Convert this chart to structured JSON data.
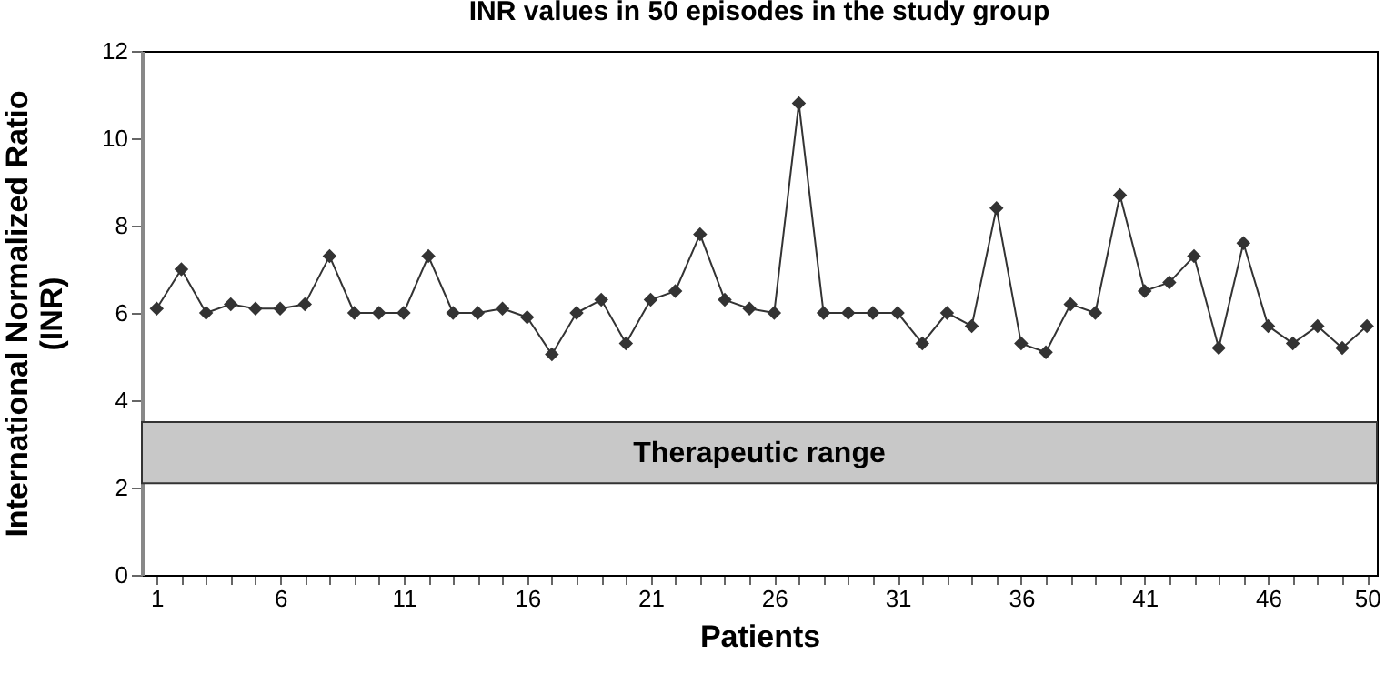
{
  "chart_data": {
    "type": "line",
    "title": "INR values in 50 episodes in the study group",
    "xlabel": "Patients",
    "ylabel": "International Normalized Ratio (INR)",
    "x": [
      1,
      2,
      3,
      4,
      5,
      6,
      7,
      8,
      9,
      10,
      11,
      12,
      13,
      14,
      15,
      16,
      17,
      18,
      19,
      20,
      21,
      22,
      23,
      24,
      25,
      26,
      27,
      28,
      29,
      30,
      31,
      32,
      33,
      34,
      35,
      36,
      37,
      38,
      39,
      40,
      41,
      42,
      43,
      44,
      45,
      46,
      47,
      48,
      49,
      50
    ],
    "series": [
      {
        "color": "#333333",
        "values": [
          6.1,
          7.0,
          6.0,
          6.2,
          6.1,
          6.1,
          6.2,
          7.3,
          6.0,
          6.0,
          6.0,
          7.3,
          6.0,
          6.0,
          6.1,
          5.9,
          5.05,
          6.0,
          6.3,
          5.3,
          6.3,
          6.5,
          7.8,
          6.3,
          6.1,
          6.0,
          10.8,
          6.0,
          6.0,
          6.0,
          6.0,
          5.3,
          6.0,
          5.7,
          8.4,
          5.3,
          5.1,
          6.2,
          6.0,
          8.7,
          6.5,
          6.7,
          7.3,
          5.2,
          7.6,
          5.7,
          5.3,
          5.7,
          5.2,
          5.7
        ]
      }
    ],
    "xlim": [
      0.4,
      50.4
    ],
    "xticks": [
      1,
      {
        "value": 2,
        "label": null
      },
      {
        "value": 3,
        "label": null
      },
      {
        "value": 4,
        "label": null
      },
      {
        "value": 5,
        "label": null
      },
      6,
      {
        "value": 7,
        "label": null
      },
      {
        "value": 8,
        "label": null
      },
      {
        "value": 9,
        "label": null
      },
      {
        "value": 10,
        "label": null
      },
      11,
      {
        "value": 12,
        "label": null
      },
      {
        "value": 13,
        "label": null
      },
      {
        "value": 14,
        "label": null
      },
      {
        "value": 15,
        "label": null
      },
      16,
      {
        "value": 17,
        "label": null
      },
      {
        "value": 18,
        "label": null
      },
      {
        "value": 19,
        "label": null
      },
      {
        "value": 20,
        "label": null
      },
      21,
      {
        "value": 22,
        "label": null
      },
      {
        "value": 23,
        "label": null
      },
      {
        "value": 24,
        "label": null
      },
      {
        "value": 25,
        "label": null
      },
      26,
      {
        "value": 27,
        "label": null
      },
      {
        "value": 28,
        "label": null
      },
      {
        "value": 29,
        "label": null
      },
      {
        "value": 30,
        "label": null
      },
      31,
      {
        "value": 32,
        "label": null
      },
      {
        "value": 33,
        "label": null
      },
      {
        "value": 34,
        "label": null
      },
      {
        "value": 35,
        "label": null
      },
      36,
      {
        "value": 37,
        "label": null
      },
      {
        "value": 38,
        "label": null
      },
      {
        "value": 39,
        "label": null
      },
      {
        "value": 40,
        "label": null
      },
      41,
      {
        "value": 42,
        "label": null
      },
      {
        "value": 43,
        "label": null
      },
      {
        "value": 44,
        "label": null
      },
      {
        "value": 45,
        "label": null
      },
      46,
      {
        "value": 47,
        "label": null
      },
      {
        "value": 48,
        "label": null
      },
      {
        "value": 49,
        "label": null
      },
      50
    ],
    "ylim": [
      0,
      12
    ],
    "yticks": [
      0,
      2,
      4,
      6,
      8,
      10,
      12
    ],
    "bands": [
      {
        "axis": "y",
        "from": 2.1,
        "to": 3.5,
        "label": "Therapeutic range",
        "color": "#c8c8c8"
      }
    ],
    "marker": "diamond",
    "line_style": "solid"
  }
}
